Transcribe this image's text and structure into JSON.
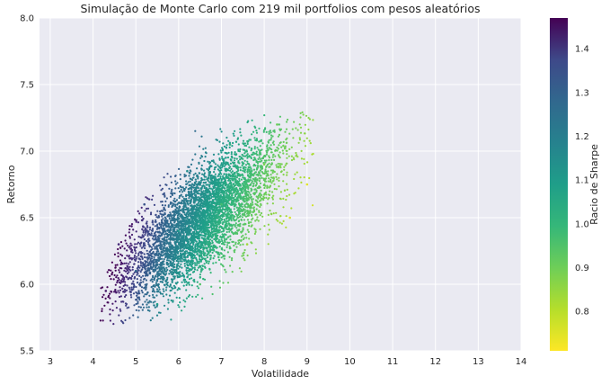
{
  "chart_data": {
    "type": "scatter",
    "title": "Simulação de Monte Carlo com 219 mil portfolios com pesos aleatórios",
    "xlabel": "Volatilidade",
    "ylabel": "Retorno",
    "xlim": [
      2.75,
      14
    ],
    "ylim": [
      5.5,
      8.0
    ],
    "xticks": [
      "3",
      "4",
      "5",
      "6",
      "7",
      "8",
      "9",
      "10",
      "11",
      "12",
      "13",
      "14"
    ],
    "yticks": [
      "5.5",
      "6.0",
      "6.5",
      "7.0",
      "7.5",
      "8.0"
    ],
    "colorbar": {
      "label": "Racio de Sharpe",
      "range": [
        0.71,
        1.47
      ],
      "ticks": [
        "0.8",
        "0.9",
        "1.0",
        "1.1",
        "1.2",
        "1.3",
        "1.4"
      ],
      "colormap": "viridis_r"
    },
    "grid": true,
    "plot_background": "#eaeaf2",
    "series": [
      {
        "description_points": [
          {
            "x": 4.3,
            "y": 5.95,
            "sharpe": 1.42
          },
          {
            "x": 4.6,
            "y": 6.3,
            "sharpe": 1.38
          },
          {
            "x": 5.0,
            "y": 6.1,
            "sharpe": 1.22
          },
          {
            "x": 5.2,
            "y": 6.6,
            "sharpe": 1.27
          },
          {
            "x": 5.5,
            "y": 5.85,
            "sharpe": 1.05
          },
          {
            "x": 6.0,
            "y": 6.4,
            "sharpe": 1.06
          },
          {
            "x": 6.2,
            "y": 6.85,
            "sharpe": 1.1
          },
          {
            "x": 6.5,
            "y": 6.0,
            "sharpe": 0.92
          },
          {
            "x": 7.0,
            "y": 6.6,
            "sharpe": 0.94
          },
          {
            "x": 7.2,
            "y": 7.05,
            "sharpe": 0.98
          },
          {
            "x": 7.6,
            "y": 6.3,
            "sharpe": 0.82
          },
          {
            "x": 8.0,
            "y": 6.9,
            "sharpe": 0.86
          },
          {
            "x": 8.3,
            "y": 7.2,
            "sharpe": 0.88
          },
          {
            "x": 8.6,
            "y": 6.5,
            "sharpe": 0.75
          },
          {
            "x": 9.0,
            "y": 6.75,
            "sharpe": 0.74
          }
        ]
      }
    ]
  }
}
